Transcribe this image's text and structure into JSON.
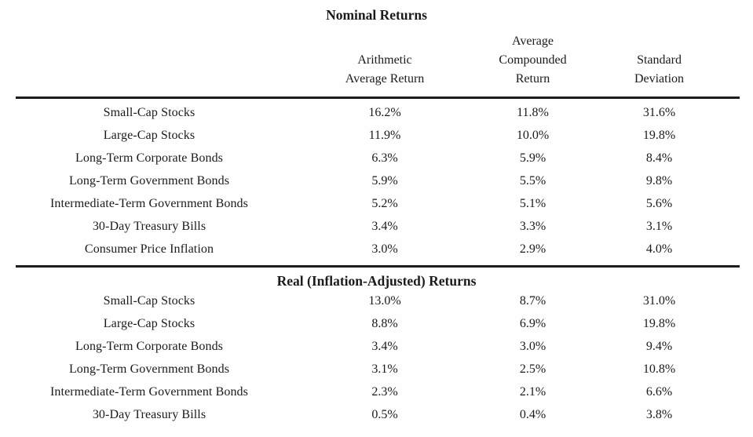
{
  "nominal": {
    "title": "Nominal Returns",
    "rows": [
      {
        "label": "Small-Cap Stocks",
        "arithmetic": "16.2%",
        "compounded": "11.8%",
        "stddev": "31.6%"
      },
      {
        "label": "Large-Cap Stocks",
        "arithmetic": "11.9%",
        "compounded": "10.0%",
        "stddev": "19.8%"
      },
      {
        "label": "Long-Term Corporate Bonds",
        "arithmetic": "6.3%",
        "compounded": "5.9%",
        "stddev": "8.4%"
      },
      {
        "label": "Long-Term Government Bonds",
        "arithmetic": "5.9%",
        "compounded": "5.5%",
        "stddev": "9.8%"
      },
      {
        "label": "Intermediate-Term Government Bonds",
        "arithmetic": "5.2%",
        "compounded": "5.1%",
        "stddev": "5.6%"
      },
      {
        "label": "30-Day Treasury Bills",
        "arithmetic": "3.4%",
        "compounded": "3.3%",
        "stddev": "3.1%"
      },
      {
        "label": "Consumer Price Inflation",
        "arithmetic": "3.0%",
        "compounded": "2.9%",
        "stddev": "4.0%"
      }
    ]
  },
  "real": {
    "title": "Real (Inflation-Adjusted) Returns",
    "rows": [
      {
        "label": "Small-Cap Stocks",
        "arithmetic": "13.0%",
        "compounded": "8.7%",
        "stddev": "31.0%"
      },
      {
        "label": "Large-Cap Stocks",
        "arithmetic": "8.8%",
        "compounded": "6.9%",
        "stddev": "19.8%"
      },
      {
        "label": "Long-Term Corporate Bonds",
        "arithmetic": "3.4%",
        "compounded": "3.0%",
        "stddev": "9.4%"
      },
      {
        "label": "Long-Term Government Bonds",
        "arithmetic": "3.1%",
        "compounded": "2.5%",
        "stddev": "10.8%"
      },
      {
        "label": "Intermediate-Term Government Bonds",
        "arithmetic": "2.3%",
        "compounded": "2.1%",
        "stddev": "6.6%"
      },
      {
        "label": "30-Day Treasury Bills",
        "arithmetic": "0.5%",
        "compounded": "0.4%",
        "stddev": "3.8%"
      }
    ]
  },
  "headers": {
    "label": "",
    "arithmetic": "Arithmetic\nAverage Return",
    "compounded": "Average\nCompounded\nReturn",
    "stddev": "Standard\nDeviation"
  },
  "colors": {
    "text": "#1b1b1b",
    "rule": "#1c1c1c",
    "background": "#fefefe"
  }
}
